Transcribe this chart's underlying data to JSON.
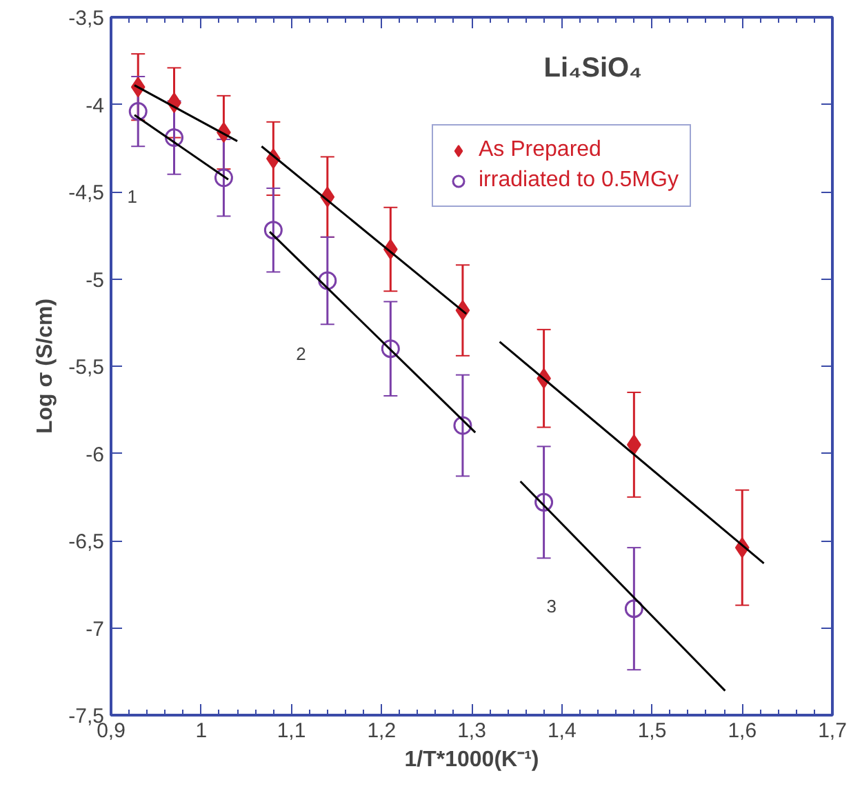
{
  "chart_data": {
    "type": "scatter",
    "title": "Li₄SiO₄",
    "xlabel": "1/T*1000(K⁻¹)",
    "ylabel": "Log σ (S/cm)",
    "xlim": [
      0.9,
      1.7
    ],
    "ylim": [
      -7.5,
      -3.5
    ],
    "xticks": [
      {
        "value": 0.9,
        "label": "0,9"
      },
      1,
      {
        "value": 1.1,
        "label": "1,1"
      },
      {
        "value": 1.2,
        "label": "1,2"
      },
      {
        "value": 1.3,
        "label": "1,3"
      },
      {
        "value": 1.4,
        "label": "1,4"
      },
      {
        "value": 1.5,
        "label": "1,5"
      },
      {
        "value": 1.6,
        "label": "1,6"
      },
      {
        "value": 1.7,
        "label": "1,7"
      }
    ],
    "yticks": [
      {
        "value": -3.5,
        "label": "-3,5"
      },
      -4,
      {
        "value": -4.5,
        "label": "-4,5"
      },
      -5,
      {
        "value": -5.5,
        "label": "-5,5"
      },
      -6,
      {
        "value": -6.5,
        "label": "-6,5"
      },
      -7,
      {
        "value": -7.5,
        "label": "-7,5"
      }
    ],
    "grid": false,
    "legend": "top right",
    "series": [
      {
        "name": "As Prepared",
        "marker": "diamond",
        "color": "#d0202a",
        "x": [
          0.93,
          0.97,
          1.025,
          1.08,
          1.14,
          1.21,
          1.29,
          1.38,
          1.48,
          1.6
        ],
        "values": [
          -3.9,
          -3.99,
          -4.16,
          -4.31,
          -4.53,
          -4.83,
          -5.18,
          -5.57,
          -5.95,
          -6.54
        ],
        "errors": [
          0.19,
          0.2,
          0.21,
          0.21,
          0.23,
          0.24,
          0.26,
          0.28,
          0.3,
          0.33
        ]
      },
      {
        "name": "irradiated to 0.5MGy",
        "marker": "circle",
        "color": "#7b3fa8",
        "x": [
          0.93,
          0.97,
          1.025,
          1.08,
          1.14,
          1.21,
          1.29,
          1.38,
          1.48
        ],
        "values": [
          -4.04,
          -4.19,
          -4.42,
          -4.72,
          -5.01,
          -5.4,
          -5.84,
          -6.28,
          -6.89
        ],
        "errors": [
          0.2,
          0.21,
          0.22,
          0.24,
          0.25,
          0.27,
          0.29,
          0.32,
          0.35
        ]
      },
      {
        "type": "line",
        "color": "#000000",
        "x": [
          0.926,
          1.04
        ],
        "values": [
          -3.89,
          -4.21
        ]
      },
      {
        "type": "line",
        "color": "#000000",
        "x": [
          0.926,
          1.03
        ],
        "values": [
          -4.06,
          -4.43
        ]
      },
      {
        "type": "line",
        "color": "#000000",
        "x": [
          1.067,
          1.294
        ],
        "values": [
          -4.24,
          -5.2
        ]
      },
      {
        "type": "line",
        "color": "#000000",
        "x": [
          1.076,
          1.304
        ],
        "values": [
          -4.73,
          -5.88
        ]
      },
      {
        "type": "line",
        "color": "#000000",
        "x": [
          1.331,
          1.624
        ],
        "values": [
          -5.36,
          -6.63
        ]
      },
      {
        "type": "line",
        "color": "#000000",
        "x": [
          1.354,
          1.581
        ],
        "values": [
          -6.16,
          -7.36
        ]
      }
    ],
    "annotations": [
      "1",
      "2",
      "3"
    ]
  }
}
